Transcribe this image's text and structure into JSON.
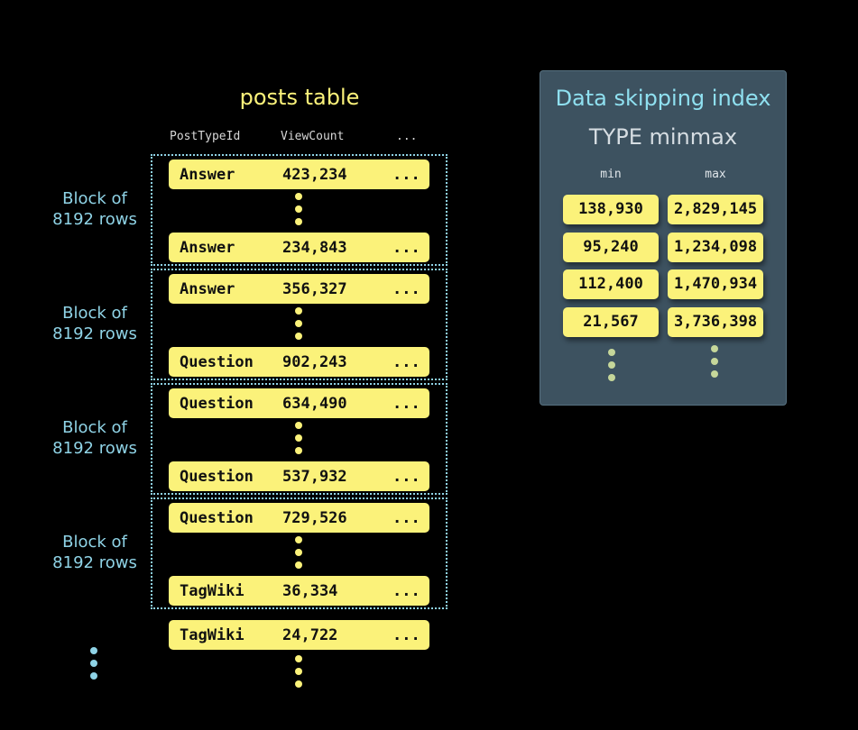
{
  "table": {
    "title": "posts table",
    "columns": [
      "PostTypeId",
      "ViewCount",
      "..."
    ],
    "block_label_line1": "Block of",
    "block_label_line2": "8192 rows",
    "blocks": [
      {
        "first": {
          "type": "Answer",
          "views": "423,234",
          "more": "..."
        },
        "last": {
          "type": "Answer",
          "views": "234,843",
          "more": "..."
        }
      },
      {
        "first": {
          "type": "Answer",
          "views": "356,327",
          "more": "..."
        },
        "last": {
          "type": "Question",
          "views": "902,243",
          "more": "..."
        }
      },
      {
        "first": {
          "type": "Question",
          "views": "634,490",
          "more": "..."
        },
        "last": {
          "type": "Question",
          "views": "537,932",
          "more": "..."
        }
      },
      {
        "first": {
          "type": "Question",
          "views": "729,526",
          "more": "..."
        },
        "last": {
          "type": "TagWiki",
          "views": "36,334",
          "more": "..."
        }
      }
    ],
    "extra_row": {
      "type": "TagWiki",
      "views": "24,722",
      "more": "..."
    }
  },
  "index": {
    "title": "Data skipping index",
    "subtitle": "TYPE minmax",
    "min_label": "min",
    "max_label": "max",
    "rows": [
      {
        "min": "138,930",
        "max": "2,829,145"
      },
      {
        "min": "95,240",
        "max": "1,234,098"
      },
      {
        "min": "112,400",
        "max": "1,470,934"
      },
      {
        "min": "21,567",
        "max": "3,736,398"
      }
    ]
  },
  "colors": {
    "row": "#fbf27a",
    "block_border": "#8fd3e6",
    "panel": "#3d5260"
  }
}
